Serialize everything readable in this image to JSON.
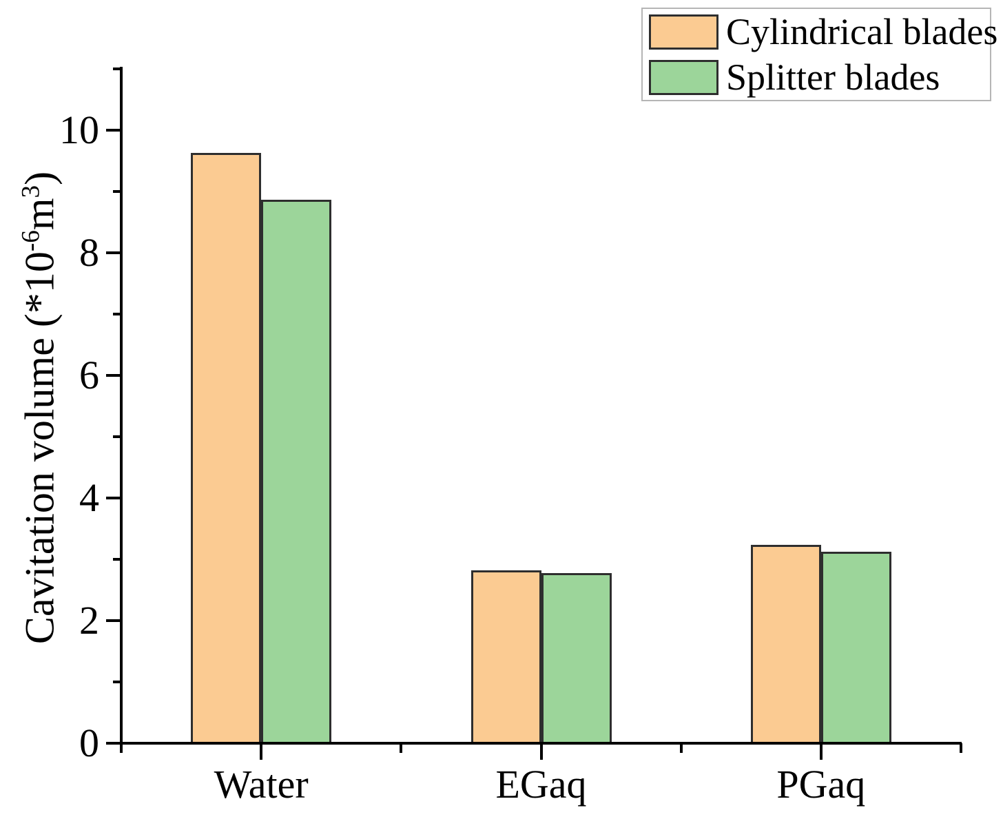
{
  "chart_data": {
    "type": "bar",
    "title": "",
    "categories": [
      "Water",
      "EGaq",
      "PGaq"
    ],
    "series": [
      {
        "name": "Cylindrical blades",
        "color": "#fbcb92",
        "border_color": "#2e2e2e",
        "values": [
          9.63,
          2.82,
          3.24
        ]
      },
      {
        "name": "Splitter blades",
        "color": "#9cd59a",
        "border_color": "#2e2e2e",
        "values": [
          8.86,
          2.77,
          3.12
        ]
      }
    ],
    "xlabel": "",
    "ylabel": "Cavitation volume (*10^-6 m^3)",
    "ylabel_segments": [
      {
        "text": "Cavitation volume (*10"
      },
      {
        "text": "-6",
        "sup": true
      },
      {
        "text": "m"
      },
      {
        "text": "3",
        "sup": true
      },
      {
        "text": ")"
      }
    ],
    "ylim": [
      0,
      11
    ],
    "y_major_ticks": [
      0,
      2,
      4,
      6,
      8,
      10
    ],
    "y_minor_ticks": [
      1,
      3,
      5,
      7,
      9,
      11
    ],
    "x_minor_boundaries": [
      0,
      1,
      2,
      3
    ],
    "grid": false,
    "legend_position": "top-right",
    "colors": {
      "axis": "#000000",
      "text": "#000000",
      "legend_border": "#b5b5b5",
      "background": "#ffffff"
    }
  }
}
